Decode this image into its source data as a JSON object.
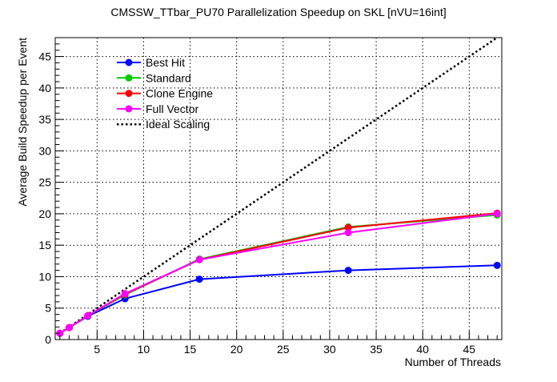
{
  "chart_data": {
    "type": "line",
    "title": "CMSSW_TTbar_PU70 Parallelization Speedup on SKL [nVU=16int]",
    "xlabel": "Number of Threads",
    "ylabel": "Average Build Speedup per Event",
    "xlim": [
      0.5,
      48.5
    ],
    "ylim": [
      0,
      48
    ],
    "x_ticks": [
      5,
      10,
      15,
      20,
      25,
      30,
      35,
      40,
      45
    ],
    "y_ticks": [
      0,
      5,
      10,
      15,
      20,
      25,
      30,
      35,
      40,
      45
    ],
    "x_tick_labels": [
      "5",
      "10",
      "15",
      "20",
      "25",
      "30",
      "35",
      "40",
      "45"
    ],
    "y_tick_labels": [
      "0",
      "5",
      "10",
      "15",
      "20",
      "25",
      "30",
      "35",
      "40",
      "45"
    ],
    "grid": true,
    "legend_position": "top-left",
    "x": [
      1,
      2,
      4,
      8,
      16,
      32,
      48
    ],
    "series": [
      {
        "name": "Best Hit",
        "color": "#0000ff",
        "values": [
          1.0,
          1.9,
          3.7,
          6.5,
          9.6,
          11.0,
          11.8
        ]
      },
      {
        "name": "Standard",
        "color": "#00cc00",
        "values": [
          1.0,
          1.9,
          3.8,
          7.1,
          12.8,
          17.9,
          19.8
        ]
      },
      {
        "name": "Clone Engine",
        "color": "#ff0000",
        "values": [
          1.0,
          1.9,
          3.8,
          7.2,
          12.7,
          17.8,
          20.1
        ]
      },
      {
        "name": "Full Vector",
        "color": "#ff00ff",
        "values": [
          1.0,
          1.9,
          3.8,
          7.3,
          12.7,
          17.0,
          20.0
        ]
      }
    ],
    "reference": {
      "name": "Ideal Scaling",
      "color": "#000000",
      "style": "dotted",
      "x": [
        1,
        48
      ],
      "values": [
        1,
        48
      ]
    }
  }
}
